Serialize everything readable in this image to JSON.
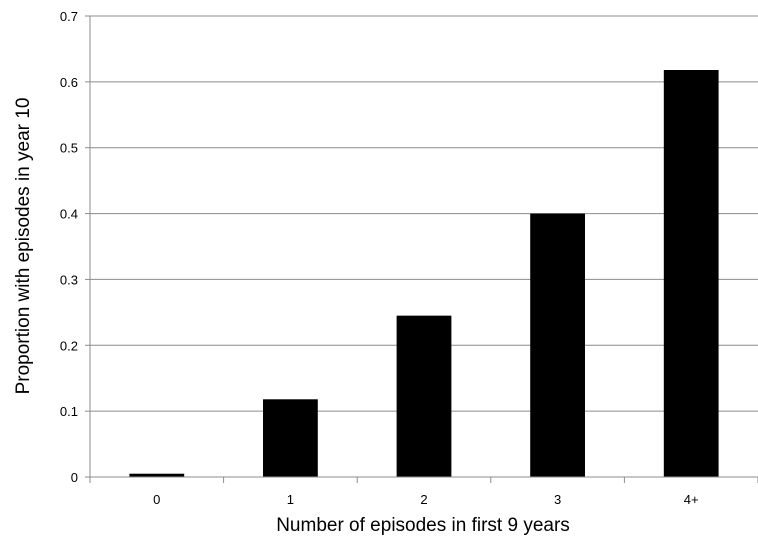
{
  "chart_data": {
    "type": "bar",
    "title": "",
    "xlabel": "Number of episodes in first 9 years",
    "ylabel": "Proportion with episodes in year 10",
    "categories": [
      "0",
      "1",
      "2",
      "3",
      "4+"
    ],
    "values": [
      0.005,
      0.118,
      0.245,
      0.4,
      0.618
    ],
    "ylim": [
      0,
      0.7
    ],
    "yticks": [
      "0",
      "0.1",
      "0.2",
      "0.3",
      "0.4",
      "0.5",
      "0.6",
      "0.7"
    ],
    "grid": true,
    "legend": "none",
    "bar_color": "#000000",
    "grid_color": "#8c8c8c"
  }
}
